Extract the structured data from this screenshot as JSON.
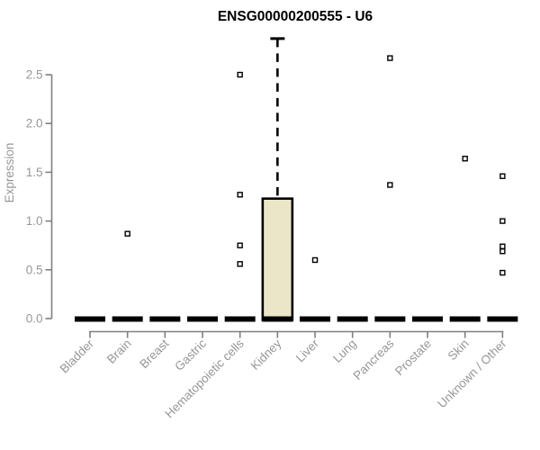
{
  "chart_data": {
    "type": "boxplot",
    "title": "ENSG00000200555 - U6",
    "xlabel": "",
    "ylabel": "Expression",
    "ylim": [
      0.0,
      2.5
    ],
    "yticks": [
      "0.0",
      "0.5",
      "1.0",
      "1.5",
      "2.0",
      "2.5"
    ],
    "ytick_values": [
      0.0,
      0.5,
      1.0,
      1.5,
      2.0,
      2.5
    ],
    "grid": false,
    "x_tick_rotation": -45,
    "categories": [
      "Bladder",
      "Brain",
      "Breast",
      "Gastric",
      "Hematopoietic cells",
      "Kidney",
      "Liver",
      "Lung",
      "Pancreas",
      "Prostate",
      "Skin",
      "Unknown / Other"
    ],
    "boxes": [
      {
        "category": "Bladder",
        "q1": 0,
        "median": 0,
        "q3": 0,
        "whisker_low": 0,
        "whisker_high": 0,
        "outliers": []
      },
      {
        "category": "Brain",
        "q1": 0,
        "median": 0,
        "q3": 0,
        "whisker_low": 0,
        "whisker_high": 0,
        "outliers": [
          0.87
        ]
      },
      {
        "category": "Breast",
        "q1": 0,
        "median": 0,
        "q3": 0,
        "whisker_low": 0,
        "whisker_high": 0,
        "outliers": []
      },
      {
        "category": "Gastric",
        "q1": 0,
        "median": 0,
        "q3": 0,
        "whisker_low": 0,
        "whisker_high": 0,
        "outliers": []
      },
      {
        "category": "Hematopoietic cells",
        "q1": 0,
        "median": 0,
        "q3": 0,
        "whisker_low": 0,
        "whisker_high": 0,
        "outliers": [
          2.5,
          1.27,
          0.75,
          0.56
        ]
      },
      {
        "category": "Kidney",
        "q1": 0,
        "median": 0,
        "q3": 1.23,
        "whisker_low": 0,
        "whisker_high": 2.87,
        "outliers": []
      },
      {
        "category": "Liver",
        "q1": 0,
        "median": 0,
        "q3": 0,
        "whisker_low": 0,
        "whisker_high": 0,
        "outliers": [
          0.6
        ]
      },
      {
        "category": "Lung",
        "q1": 0,
        "median": 0,
        "q3": 0,
        "whisker_low": 0,
        "whisker_high": 0,
        "outliers": []
      },
      {
        "category": "Pancreas",
        "q1": 0,
        "median": 0,
        "q3": 0,
        "whisker_low": 0,
        "whisker_high": 0,
        "outliers": [
          2.67,
          1.37
        ]
      },
      {
        "category": "Prostate",
        "q1": 0,
        "median": 0,
        "q3": 0,
        "whisker_low": 0,
        "whisker_high": 0,
        "outliers": []
      },
      {
        "category": "Skin",
        "q1": 0,
        "median": 0,
        "q3": 0,
        "whisker_low": 0,
        "whisker_high": 0,
        "outliers": [
          1.64
        ]
      },
      {
        "category": "Unknown / Other",
        "q1": 0,
        "median": 0,
        "q3": 0,
        "whisker_low": 0,
        "whisker_high": 0,
        "outliers": [
          1.46,
          1.0,
          0.74,
          0.69,
          0.47
        ]
      }
    ],
    "colors": {
      "box_fill": "#ebe6c8",
      "box_border": "#000000",
      "median": "#000000",
      "whisker": "#000000",
      "outlier_fill": "#ffffff",
      "outlier_border": "#000000",
      "axis": "#7f7f7f",
      "tick_label": "#979797",
      "title": "#000000",
      "background": "#ffffff"
    },
    "legend": null
  }
}
